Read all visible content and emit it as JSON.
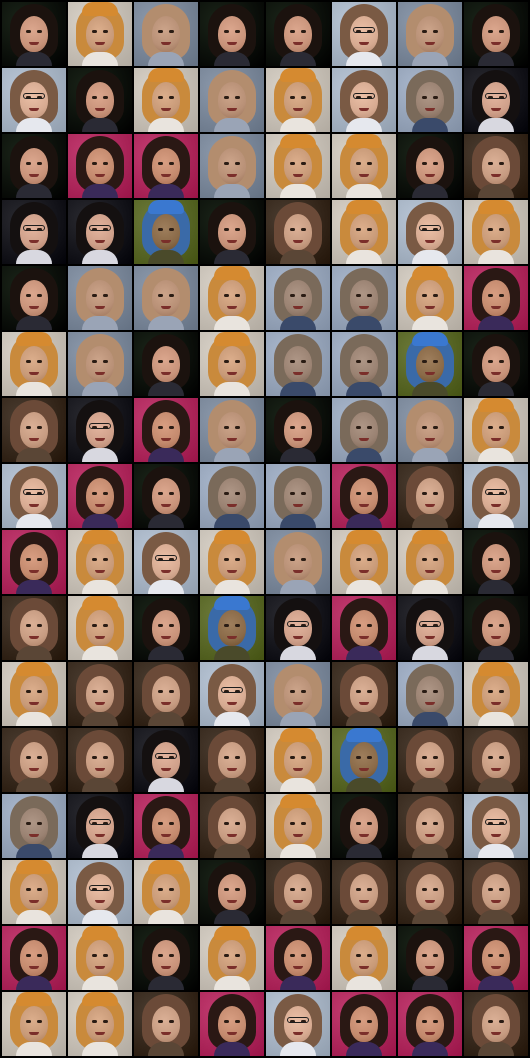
{
  "grid": {
    "rows": 16,
    "cols": 8,
    "palettes": {
      "girl_dark": {
        "bg": "#1a2418",
        "hair": "#1b120e",
        "face": "#c8937a",
        "neck": "#2a2a34"
      },
      "woman_glasses_light": {
        "bg": "#b9c6d6",
        "hair": "#7a5a44",
        "face": "#d7ab92",
        "neck": "#e6e8ee",
        "glasses": true
      },
      "man_orange": {
        "bg": "#d9d2c8",
        "hair": "#c98a3c",
        "face": "#c89a78",
        "neck": "#e9e4de",
        "cap": "#d58a30"
      },
      "man_blurry": {
        "bg": "#8c99ab",
        "hair": "#b38d6e",
        "face": "#b89076",
        "neck": "#9aa4b6"
      },
      "woman_brown": {
        "bg": "#4a3c30",
        "hair": "#6b4a38",
        "face": "#c79c82",
        "neck": "#5a4636"
      },
      "girl_colorful": {
        "bg": "#c23c70",
        "hair": "#2a1814",
        "face": "#c48a6e",
        "neck": "#3a2a5a"
      },
      "man_bluecap": {
        "bg": "#6c7a3a",
        "hair": "#3a6aa8",
        "face": "#8a6a48",
        "neck": "#4a4a2a",
        "cap": "#3a78d0"
      },
      "woman_glasses_dark": {
        "bg": "#2a2a30",
        "hair": "#141010",
        "face": "#cfa08a",
        "neck": "#d8d8e0",
        "glasses": true
      },
      "man_grayblue": {
        "bg": "#a9b7cc",
        "hair": "#7a6a5a",
        "face": "#9a8272",
        "neck": "#3a4a6a"
      }
    },
    "tiles": [
      [
        "girl_dark",
        "man_orange",
        "man_blurry",
        "girl_dark",
        "girl_dark",
        "woman_glasses_light",
        "man_blurry",
        "girl_dark"
      ],
      [
        "woman_glasses_light",
        "girl_dark",
        "man_orange",
        "man_blurry",
        "man_orange",
        "woman_glasses_light",
        "man_grayblue",
        "woman_glasses_dark"
      ],
      [
        "girl_dark",
        "girl_colorful",
        "girl_colorful",
        "man_blurry",
        "man_orange",
        "man_orange",
        "girl_dark",
        "woman_brown"
      ],
      [
        "woman_glasses_dark",
        "woman_glasses_dark",
        "man_bluecap",
        "girl_dark",
        "woman_brown",
        "man_orange",
        "woman_glasses_light",
        "man_orange"
      ],
      [
        "girl_dark",
        "man_blurry",
        "man_blurry",
        "man_orange",
        "man_grayblue",
        "man_grayblue",
        "man_orange",
        "girl_colorful"
      ],
      [
        "man_orange",
        "man_blurry",
        "girl_dark",
        "man_orange",
        "man_grayblue",
        "man_grayblue",
        "man_bluecap",
        "girl_dark"
      ],
      [
        "woman_brown",
        "woman_glasses_dark",
        "girl_colorful",
        "man_blurry",
        "girl_dark",
        "man_grayblue",
        "man_blurry",
        "man_orange"
      ],
      [
        "woman_glasses_light",
        "girl_colorful",
        "girl_dark",
        "man_grayblue",
        "man_grayblue",
        "girl_colorful",
        "woman_brown",
        "woman_glasses_light"
      ],
      [
        "girl_colorful",
        "man_orange",
        "woman_glasses_light",
        "man_orange",
        "man_blurry",
        "man_orange",
        "man_orange",
        "girl_dark"
      ],
      [
        "woman_brown",
        "man_orange",
        "girl_dark",
        "man_bluecap",
        "woman_glasses_dark",
        "girl_colorful",
        "woman_glasses_dark",
        "girl_dark"
      ],
      [
        "man_orange",
        "woman_brown",
        "woman_brown",
        "woman_glasses_light",
        "man_blurry",
        "woman_brown",
        "man_grayblue",
        "man_orange"
      ],
      [
        "woman_brown",
        "woman_brown",
        "woman_glasses_dark",
        "woman_brown",
        "man_orange",
        "man_bluecap",
        "woman_brown",
        "woman_brown"
      ],
      [
        "man_grayblue",
        "woman_glasses_dark",
        "girl_colorful",
        "woman_brown",
        "man_orange",
        "girl_dark",
        "woman_brown",
        "woman_glasses_light"
      ],
      [
        "man_orange",
        "woman_glasses_light",
        "man_orange",
        "girl_dark",
        "woman_brown",
        "woman_brown",
        "woman_brown",
        "woman_brown"
      ],
      [
        "girl_colorful",
        "man_orange",
        "girl_dark",
        "man_orange",
        "girl_colorful",
        "man_orange",
        "girl_dark",
        "girl_colorful"
      ],
      [
        "man_orange",
        "man_orange",
        "woman_brown",
        "girl_colorful",
        "woman_glasses_light",
        "girl_colorful",
        "girl_colorful",
        "woman_brown"
      ]
    ]
  }
}
